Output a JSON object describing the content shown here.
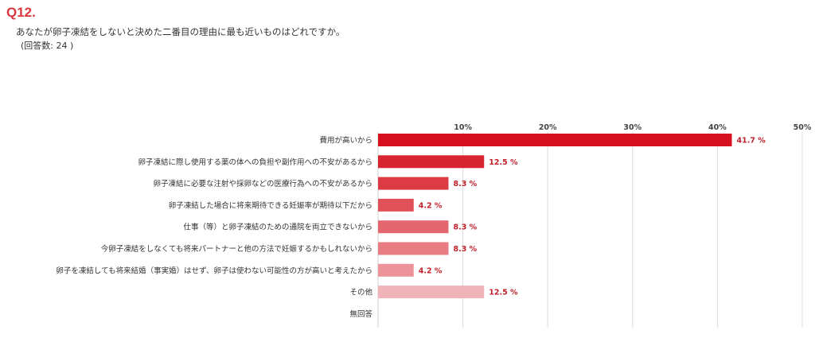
{
  "question": {
    "number": "Q12.",
    "text": "あなたが卵子凍結をしないと決めた二番目の理由に最も近いものはどれですか。",
    "count": "(回答数: 24 )"
  },
  "chart_data": {
    "type": "bar",
    "orientation": "horizontal",
    "categories": [
      "費用が高いから",
      "卵子凍結に際し使用する薬の体への負担や副作用への不安があるから",
      "卵子凍結に必要な注射や採卵などの医療行為への不安があるから",
      "卵子凍結した場合に将来期待できる妊娠率が期待以下だから",
      "仕事（等）と卵子凍結のための通院を両立できないから",
      "今卵子凍結をしなくても将来パートナーと他の方法で妊娠するかもしれないから",
      "卵子を凍結しても将来結婚（事実婚）はせず、卵子は使わない可能性の方が高いと考えたから",
      "その他",
      "無回答"
    ],
    "values": [
      41.7,
      12.5,
      8.3,
      4.2,
      8.3,
      8.3,
      4.2,
      12.5,
      null
    ],
    "value_labels": [
      "41.7 %",
      "12.5 %",
      "8.3 %",
      "4.2 %",
      "8.3 %",
      "8.3 %",
      "4.2 %",
      "12.5 %",
      ""
    ],
    "xlim": [
      0,
      50
    ],
    "ticks": [
      10,
      20,
      30,
      40,
      50
    ],
    "tick_labels": [
      "10%",
      "20%",
      "30%",
      "40%",
      "50%"
    ],
    "bar_colors": [
      "#d6101e",
      "#d8242f",
      "#dc3a45",
      "#e05059",
      "#e4666e",
      "#e87c83",
      "#ec9298",
      "#f0b4b8",
      "#f4c6c9"
    ],
    "grid": true,
    "title": "",
    "xlabel": "",
    "ylabel": ""
  }
}
